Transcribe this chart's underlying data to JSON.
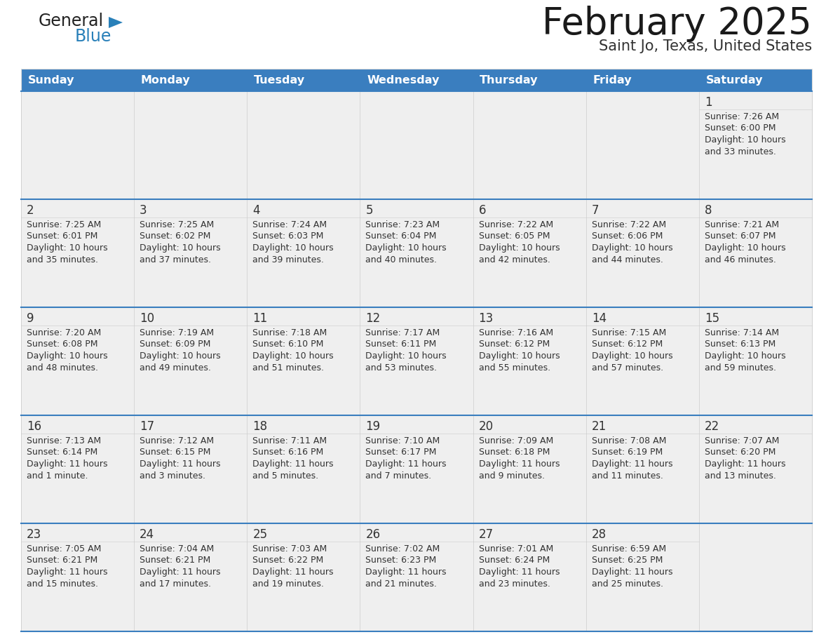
{
  "title": "February 2025",
  "subtitle": "Saint Jo, Texas, United States",
  "days_of_week": [
    "Sunday",
    "Monday",
    "Tuesday",
    "Wednesday",
    "Thursday",
    "Friday",
    "Saturday"
  ],
  "header_bg": "#3a7ebf",
  "header_text": "#ffffff",
  "cell_bg_gray": "#efefef",
  "cell_bg_white": "#ffffff",
  "separator_color": "#3a7ebf",
  "text_color": "#333333",
  "grid_color": "#cccccc",
  "calendar_data": [
    [
      null,
      null,
      null,
      null,
      null,
      null,
      {
        "day": 1,
        "sunrise": "7:26 AM",
        "sunset": "6:00 PM",
        "daylight_h": "10 hours",
        "daylight_m": "33 minutes."
      }
    ],
    [
      {
        "day": 2,
        "sunrise": "7:25 AM",
        "sunset": "6:01 PM",
        "daylight_h": "10 hours",
        "daylight_m": "35 minutes."
      },
      {
        "day": 3,
        "sunrise": "7:25 AM",
        "sunset": "6:02 PM",
        "daylight_h": "10 hours",
        "daylight_m": "37 minutes."
      },
      {
        "day": 4,
        "sunrise": "7:24 AM",
        "sunset": "6:03 PM",
        "daylight_h": "10 hours",
        "daylight_m": "39 minutes."
      },
      {
        "day": 5,
        "sunrise": "7:23 AM",
        "sunset": "6:04 PM",
        "daylight_h": "10 hours",
        "daylight_m": "40 minutes."
      },
      {
        "day": 6,
        "sunrise": "7:22 AM",
        "sunset": "6:05 PM",
        "daylight_h": "10 hours",
        "daylight_m": "42 minutes."
      },
      {
        "day": 7,
        "sunrise": "7:22 AM",
        "sunset": "6:06 PM",
        "daylight_h": "10 hours",
        "daylight_m": "44 minutes."
      },
      {
        "day": 8,
        "sunrise": "7:21 AM",
        "sunset": "6:07 PM",
        "daylight_h": "10 hours",
        "daylight_m": "46 minutes."
      }
    ],
    [
      {
        "day": 9,
        "sunrise": "7:20 AM",
        "sunset": "6:08 PM",
        "daylight_h": "10 hours",
        "daylight_m": "48 minutes."
      },
      {
        "day": 10,
        "sunrise": "7:19 AM",
        "sunset": "6:09 PM",
        "daylight_h": "10 hours",
        "daylight_m": "49 minutes."
      },
      {
        "day": 11,
        "sunrise": "7:18 AM",
        "sunset": "6:10 PM",
        "daylight_h": "10 hours",
        "daylight_m": "51 minutes."
      },
      {
        "day": 12,
        "sunrise": "7:17 AM",
        "sunset": "6:11 PM",
        "daylight_h": "10 hours",
        "daylight_m": "53 minutes."
      },
      {
        "day": 13,
        "sunrise": "7:16 AM",
        "sunset": "6:12 PM",
        "daylight_h": "10 hours",
        "daylight_m": "55 minutes."
      },
      {
        "day": 14,
        "sunrise": "7:15 AM",
        "sunset": "6:12 PM",
        "daylight_h": "10 hours",
        "daylight_m": "57 minutes."
      },
      {
        "day": 15,
        "sunrise": "7:14 AM",
        "sunset": "6:13 PM",
        "daylight_h": "10 hours",
        "daylight_m": "59 minutes."
      }
    ],
    [
      {
        "day": 16,
        "sunrise": "7:13 AM",
        "sunset": "6:14 PM",
        "daylight_h": "11 hours",
        "daylight_m": "1 minute."
      },
      {
        "day": 17,
        "sunrise": "7:12 AM",
        "sunset": "6:15 PM",
        "daylight_h": "11 hours",
        "daylight_m": "3 minutes."
      },
      {
        "day": 18,
        "sunrise": "7:11 AM",
        "sunset": "6:16 PM",
        "daylight_h": "11 hours",
        "daylight_m": "5 minutes."
      },
      {
        "day": 19,
        "sunrise": "7:10 AM",
        "sunset": "6:17 PM",
        "daylight_h": "11 hours",
        "daylight_m": "7 minutes."
      },
      {
        "day": 20,
        "sunrise": "7:09 AM",
        "sunset": "6:18 PM",
        "daylight_h": "11 hours",
        "daylight_m": "9 minutes."
      },
      {
        "day": 21,
        "sunrise": "7:08 AM",
        "sunset": "6:19 PM",
        "daylight_h": "11 hours",
        "daylight_m": "11 minutes."
      },
      {
        "day": 22,
        "sunrise": "7:07 AM",
        "sunset": "6:20 PM",
        "daylight_h": "11 hours",
        "daylight_m": "13 minutes."
      }
    ],
    [
      {
        "day": 23,
        "sunrise": "7:05 AM",
        "sunset": "6:21 PM",
        "daylight_h": "11 hours",
        "daylight_m": "15 minutes."
      },
      {
        "day": 24,
        "sunrise": "7:04 AM",
        "sunset": "6:21 PM",
        "daylight_h": "11 hours",
        "daylight_m": "17 minutes."
      },
      {
        "day": 25,
        "sunrise": "7:03 AM",
        "sunset": "6:22 PM",
        "daylight_h": "11 hours",
        "daylight_m": "19 minutes."
      },
      {
        "day": 26,
        "sunrise": "7:02 AM",
        "sunset": "6:23 PM",
        "daylight_h": "11 hours",
        "daylight_m": "21 minutes."
      },
      {
        "day": 27,
        "sunrise": "7:01 AM",
        "sunset": "6:24 PM",
        "daylight_h": "11 hours",
        "daylight_m": "23 minutes."
      },
      {
        "day": 28,
        "sunrise": "6:59 AM",
        "sunset": "6:25 PM",
        "daylight_h": "11 hours",
        "daylight_m": "25 minutes."
      },
      null
    ]
  ],
  "logo_color1": "#222222",
  "logo_color2": "#2980b9",
  "logo_triangle_color": "#2980b9"
}
